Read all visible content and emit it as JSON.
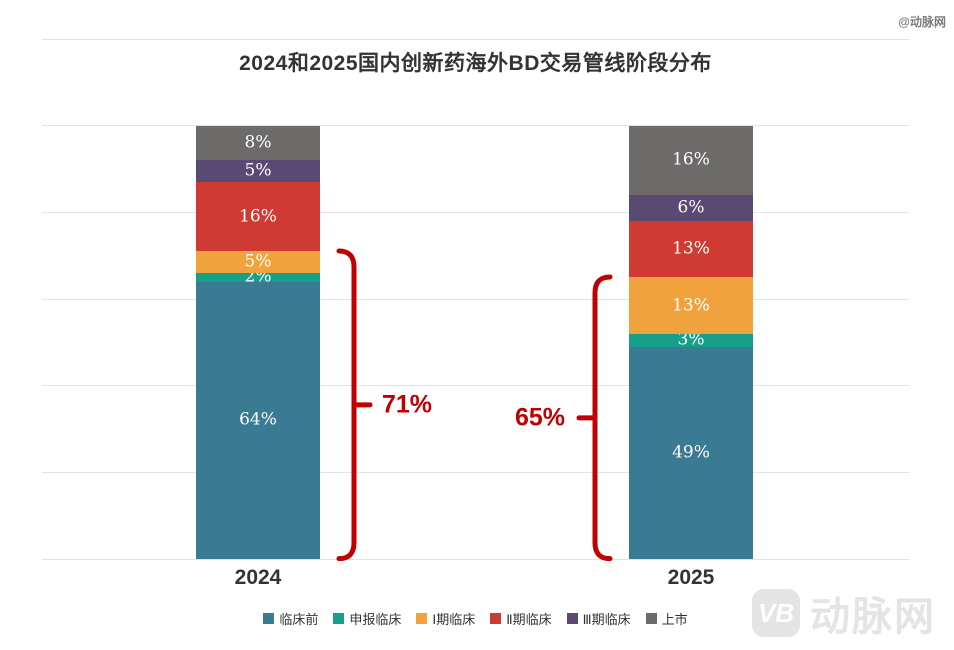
{
  "page": {
    "watermark_top": "@动脉网",
    "brand": {
      "badge": "VB",
      "name": "动脉网"
    }
  },
  "chart_data": {
    "type": "bar",
    "stacked": true,
    "title": "2024和2025国内创新药海外BD交易管线阶段分布",
    "categories": [
      "2024",
      "2025"
    ],
    "series": [
      {
        "name": "临床前",
        "color": "#3a7a92",
        "values": [
          64,
          49
        ]
      },
      {
        "name": "申报临床",
        "color": "#16a08b",
        "values": [
          2,
          3
        ]
      },
      {
        "name": "Ⅰ期临床",
        "color": "#f0a33c",
        "values": [
          5,
          13
        ]
      },
      {
        "name": "Ⅱ期临床",
        "color": "#cf3b33",
        "values": [
          16,
          13
        ]
      },
      {
        "name": "Ⅲ期临床",
        "color": "#594a73",
        "values": [
          5,
          6
        ]
      },
      {
        "name": "上市",
        "color": "#6d6a6a",
        "values": [
          8,
          16
        ]
      }
    ],
    "value_suffix": "%",
    "ylim": [
      0,
      120
    ],
    "ytick_step": 20,
    "grid": true,
    "y_axis_labels_visible": false,
    "legend_position": "bottom",
    "label_color": "#ffffff",
    "annotations": [
      {
        "label": "71%",
        "category": "2024",
        "total_pct": 71,
        "side": "right",
        "covers": [
          "临床前",
          "申报临床",
          "Ⅰ期临床"
        ],
        "color": "#c00000"
      },
      {
        "label": "65%",
        "category": "2025",
        "total_pct": 65,
        "side": "left",
        "covers": [
          "临床前",
          "申报临床",
          "Ⅰ期临床"
        ],
        "color": "#c00000"
      }
    ]
  }
}
